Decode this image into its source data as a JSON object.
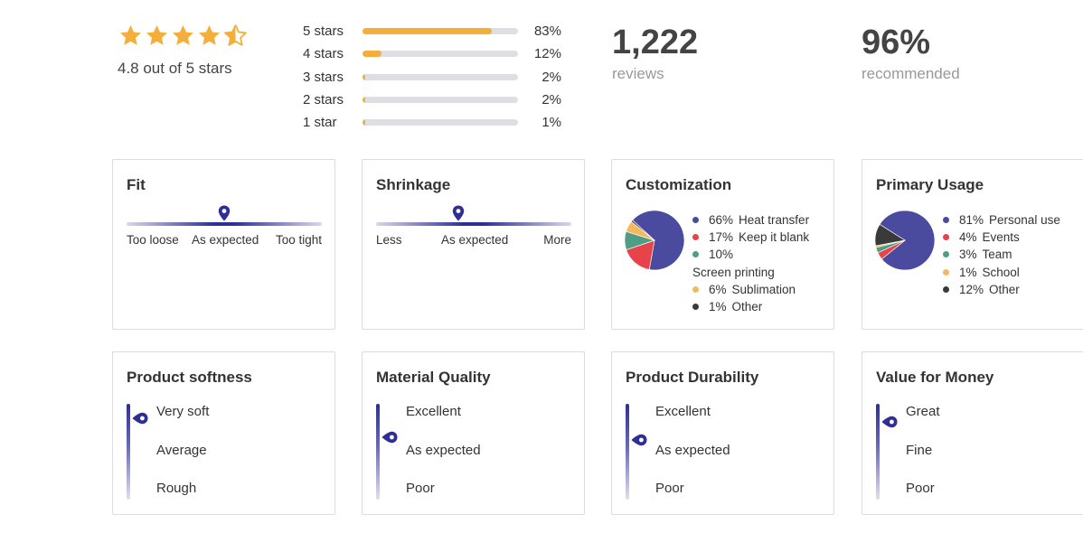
{
  "summary": {
    "star_rating": 4.8,
    "rating_text": "4.8 out of 5 stars",
    "distribution": [
      {
        "label": "5 stars",
        "pct": "83%",
        "fraction": 0.83
      },
      {
        "label": "4 stars",
        "pct": "12%",
        "fraction": 0.12
      },
      {
        "label": "3 stars",
        "pct": "2%",
        "fraction": 0.02
      },
      {
        "label": "2 stars",
        "pct": "2%",
        "fraction": 0.02
      },
      {
        "label": "1 star",
        "pct": "1%",
        "fraction": 0.01
      }
    ],
    "reviews_count": "1,222",
    "reviews_label": "reviews",
    "recommended_pct": "96%",
    "recommended_label": "recommended"
  },
  "colors": {
    "star": "#f5ae3a",
    "bar_fill": "#f5ae3a",
    "bar_track": "#dedee3",
    "scale_accent": "#2e2e96"
  },
  "fit": {
    "title": "Fit",
    "labels": [
      "Too loose",
      "As expected",
      "Too tight"
    ],
    "level": 0.5
  },
  "shrinkage": {
    "title": "Shrinkage",
    "labels": [
      "Less",
      "As expected",
      "More"
    ],
    "level": 0.42
  },
  "customization": {
    "title": "Customization",
    "items": [
      {
        "pct": "66%",
        "label": "Heat transfer",
        "value": 66,
        "color": "#4a4a9e"
      },
      {
        "pct": "17%",
        "label": "Keep it blank",
        "value": 17,
        "color": "#e8434a"
      },
      {
        "pct": "10%",
        "label": "Screen printing",
        "value": 10,
        "color": "#4f9d84"
      },
      {
        "pct": "6%",
        "label": "Sublimation",
        "value": 6,
        "color": "#f5b85c"
      },
      {
        "pct": "1%",
        "label": "Other",
        "value": 1,
        "color": "#3a3a3a"
      }
    ]
  },
  "primary_usage": {
    "title": "Primary Usage",
    "items": [
      {
        "pct": "81%",
        "label": "Personal use",
        "value": 81,
        "color": "#4a4a9e"
      },
      {
        "pct": "4%",
        "label": "Events",
        "value": 4,
        "color": "#e8434a"
      },
      {
        "pct": "3%",
        "label": "Team",
        "value": 3,
        "color": "#4f9d84"
      },
      {
        "pct": "1%",
        "label": "School",
        "value": 1,
        "color": "#f5b85c"
      },
      {
        "pct": "12%",
        "label": "Other",
        "value": 12,
        "color": "#3a3a3a"
      }
    ]
  },
  "softness": {
    "title": "Product softness",
    "labels": [
      "Very soft",
      "Average",
      "Rough"
    ],
    "level": 0.85
  },
  "material_quality": {
    "title": "Material Quality",
    "labels": [
      "Excellent",
      "As expected",
      "Poor"
    ],
    "level": 0.65
  },
  "durability": {
    "title": "Product Durability",
    "labels": [
      "Excellent",
      "As expected",
      "Poor"
    ],
    "level": 0.62
  },
  "value_for_money": {
    "title": "Value for Money",
    "labels": [
      "Great",
      "Fine",
      "Poor"
    ],
    "level": 0.81
  }
}
